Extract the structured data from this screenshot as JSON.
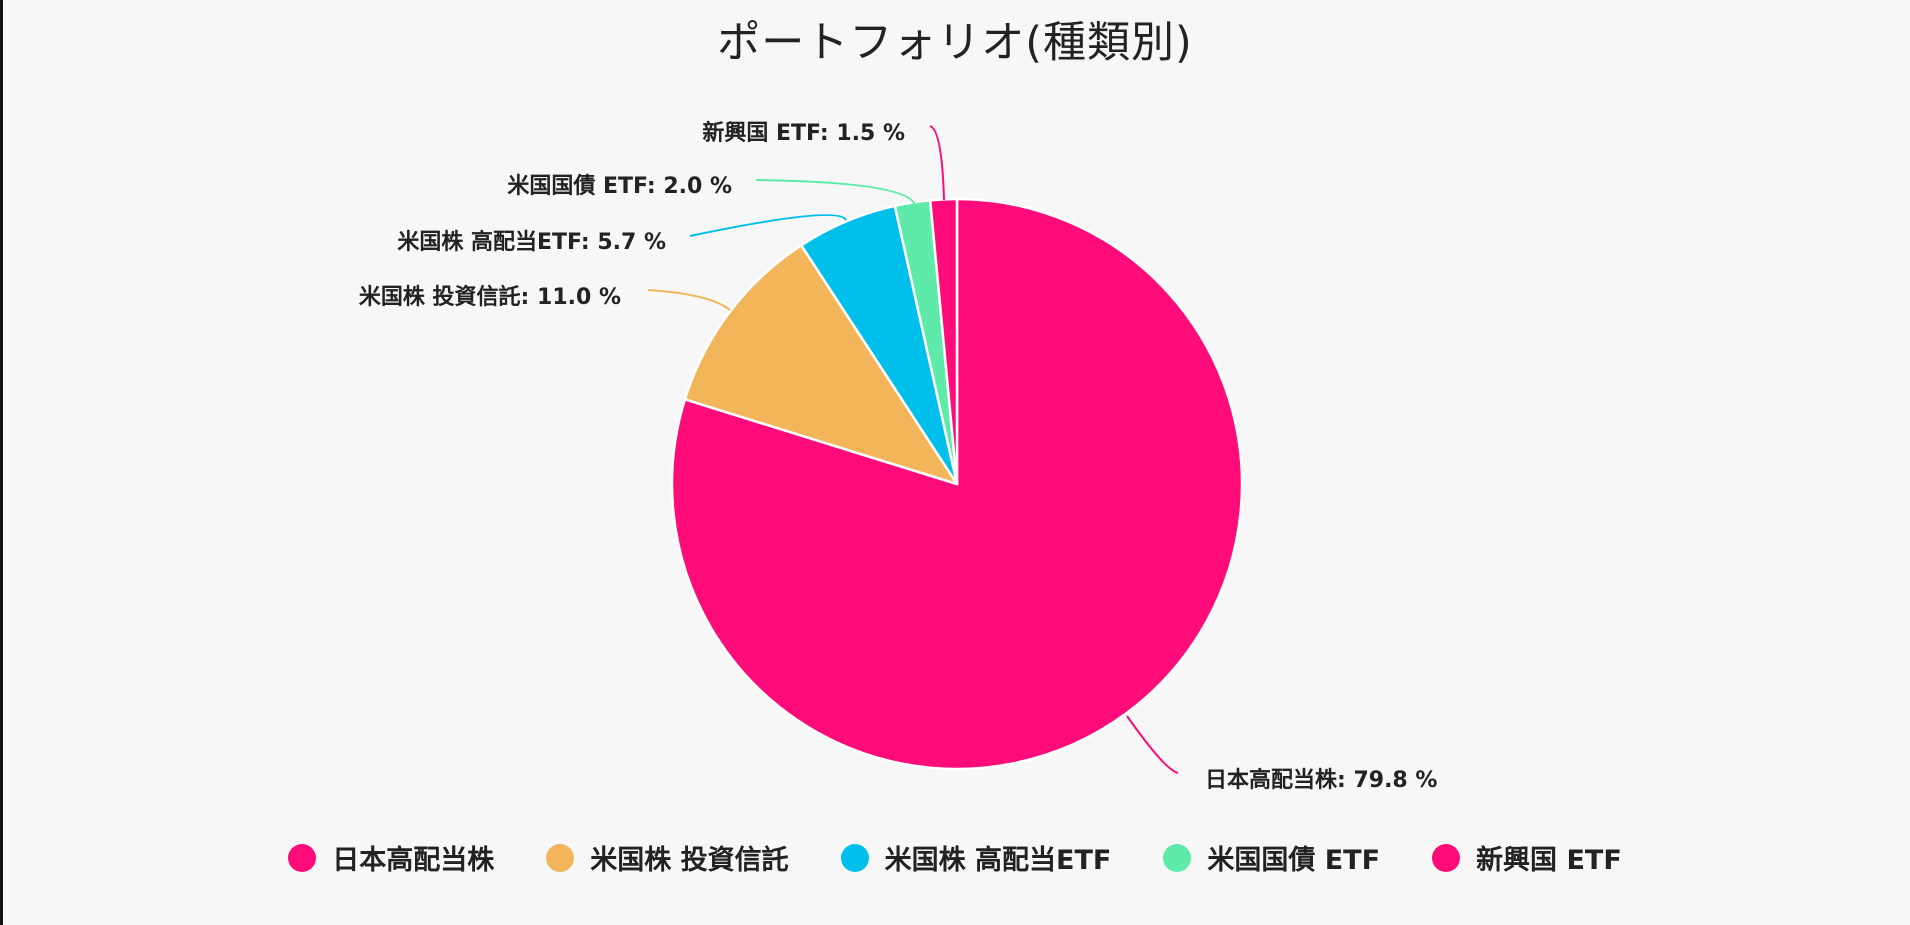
{
  "chart_data": {
    "type": "pie",
    "title": "ポートフォリオ(種類別)",
    "slices": [
      {
        "name": "日本高配当株",
        "value": 79.8,
        "label": "日本高配当株: 79.8 %",
        "color": "#ff0b7a"
      },
      {
        "name": "米国株 投資信託",
        "value": 11.0,
        "label": "米国株 投資信託: 11.0 %",
        "color": "#f2b55a"
      },
      {
        "name": "米国株 高配当ETF",
        "value": 5.7,
        "label": "米国株 高配当ETF: 5.7 %",
        "color": "#00bfea"
      },
      {
        "name": "米国国債 ETF",
        "value": 2.0,
        "label": "米国国債 ETF: 2.0 %",
        "color": "#5eeaa8"
      },
      {
        "name": "新興国 ETF",
        "value": 1.5,
        "label": "新興国 ETF: 1.5 %",
        "color": "#ff0b7a"
      }
    ],
    "legend_position": "bottom",
    "slice_border_color": "#ffffff"
  }
}
